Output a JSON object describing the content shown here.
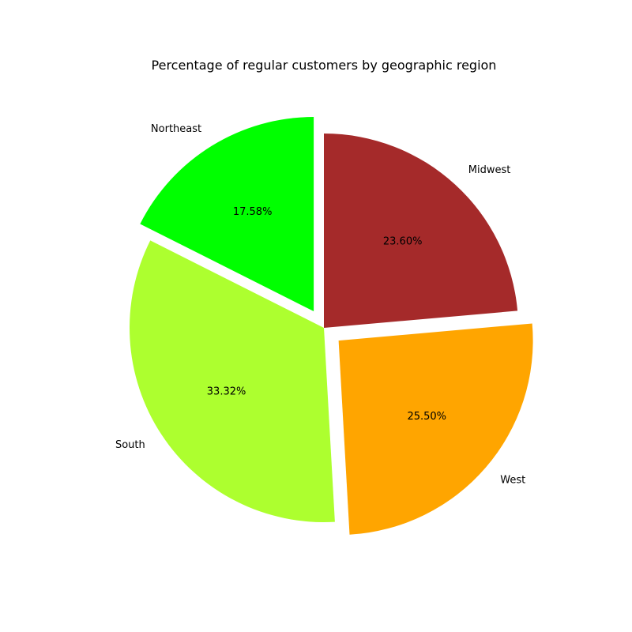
{
  "chart_data": {
    "type": "pie",
    "title": "Percentage of regular customers by geographic region",
    "slices": [
      {
        "label": "Northeast",
        "value": 17.58,
        "pct_label": "17.58%",
        "color": "#00ff00",
        "exploded": true
      },
      {
        "label": "South",
        "value": 33.32,
        "pct_label": "33.32%",
        "color": "#adff2f",
        "exploded": false
      },
      {
        "label": "West",
        "value": 25.5,
        "pct_label": "25.50%",
        "color": "#ffa500",
        "exploded": true
      },
      {
        "label": "Midwest",
        "value": 23.6,
        "pct_label": "23.60%",
        "color": "#a52a2a",
        "exploded": false
      }
    ],
    "start_angle_deg": 90,
    "direction": "counterclockwise",
    "legend": "none"
  }
}
